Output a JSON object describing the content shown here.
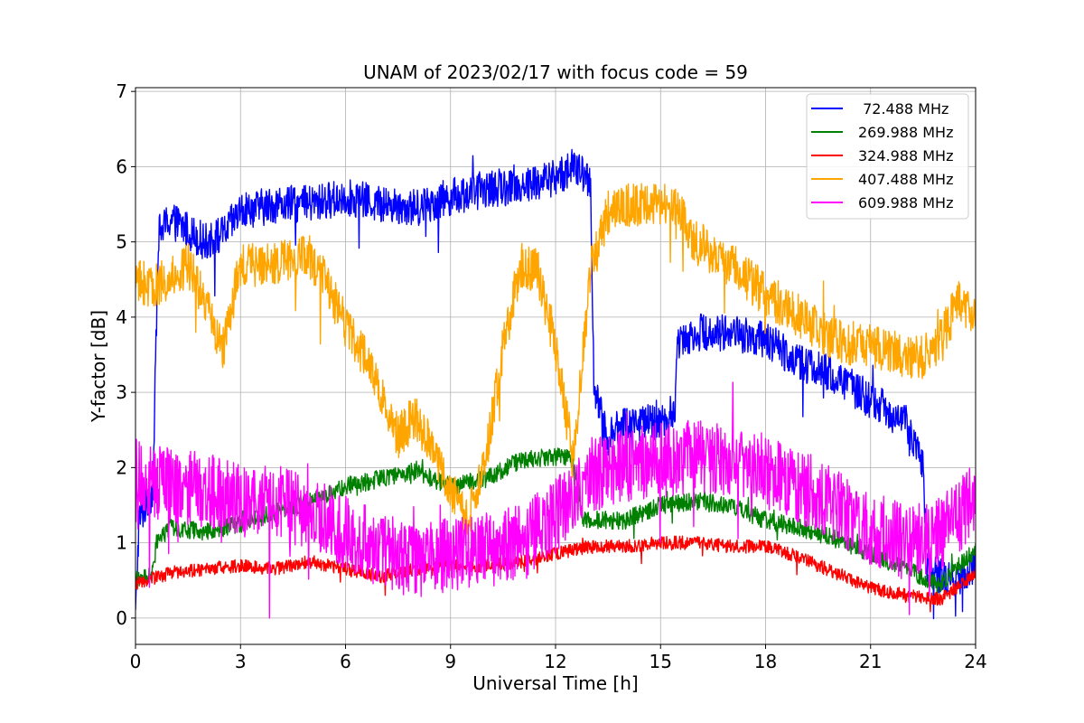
{
  "chart_data": {
    "type": "line",
    "title": "UNAM of 2023/02/17 with focus code = 59",
    "xlabel": "Universal Time [h]",
    "ylabel": "Y-factor [dB]",
    "xlim": [
      0,
      24
    ],
    "ylim": [
      -0.35,
      7.05
    ],
    "xticks": [
      0,
      3,
      6,
      9,
      12,
      15,
      18,
      21,
      24
    ],
    "yticks": [
      0,
      1,
      2,
      3,
      4,
      5,
      6,
      7
    ],
    "grid": true,
    "legend_position": "top-right",
    "series": [
      {
        "name": " 72.488 MHz",
        "color": "#0000ff",
        "noise": 0.25,
        "points": [
          [
            0.0,
            0.0
          ],
          [
            0.1,
            1.3
          ],
          [
            0.5,
            1.7
          ],
          [
            0.65,
            5.1
          ],
          [
            1.0,
            5.3
          ],
          [
            2.0,
            5.0
          ],
          [
            2.5,
            5.1
          ],
          [
            3.0,
            5.4
          ],
          [
            4.0,
            5.5
          ],
          [
            5.0,
            5.5
          ],
          [
            6.0,
            5.6
          ],
          [
            7.0,
            5.5
          ],
          [
            8.0,
            5.45
          ],
          [
            9.0,
            5.6
          ],
          [
            10.0,
            5.7
          ],
          [
            11.0,
            5.75
          ],
          [
            12.0,
            5.85
          ],
          [
            12.5,
            6.0
          ],
          [
            13.0,
            5.8
          ],
          [
            13.1,
            3.0
          ],
          [
            13.5,
            2.4
          ],
          [
            14.0,
            2.6
          ],
          [
            15.0,
            2.6
          ],
          [
            15.4,
            2.7
          ],
          [
            15.5,
            3.7
          ],
          [
            16.0,
            3.8
          ],
          [
            17.0,
            3.8
          ],
          [
            18.0,
            3.7
          ],
          [
            19.0,
            3.4
          ],
          [
            20.0,
            3.2
          ],
          [
            21.0,
            2.9
          ],
          [
            22.0,
            2.6
          ],
          [
            22.5,
            2.0
          ],
          [
            22.6,
            0.7
          ],
          [
            23.0,
            0.55
          ],
          [
            23.5,
            0.5
          ],
          [
            24.0,
            0.7
          ]
        ]
      },
      {
        "name": "269.988 MHz",
        "color": "#008000",
        "noise": 0.12,
        "points": [
          [
            0.0,
            0.5
          ],
          [
            0.5,
            0.6
          ],
          [
            0.6,
            1.0
          ],
          [
            1.0,
            1.2
          ],
          [
            2.0,
            1.15
          ],
          [
            3.0,
            1.25
          ],
          [
            4.0,
            1.4
          ],
          [
            5.0,
            1.55
          ],
          [
            6.0,
            1.75
          ],
          [
            7.0,
            1.85
          ],
          [
            8.0,
            1.95
          ],
          [
            9.0,
            1.75
          ],
          [
            10.0,
            1.85
          ],
          [
            11.0,
            2.1
          ],
          [
            12.0,
            2.15
          ],
          [
            12.5,
            2.1
          ],
          [
            12.8,
            1.3
          ],
          [
            14.0,
            1.3
          ],
          [
            15.0,
            1.5
          ],
          [
            16.0,
            1.55
          ],
          [
            17.0,
            1.5
          ],
          [
            18.0,
            1.3
          ],
          [
            19.0,
            1.2
          ],
          [
            20.0,
            1.05
          ],
          [
            21.0,
            0.85
          ],
          [
            22.0,
            0.65
          ],
          [
            23.0,
            0.45
          ],
          [
            24.0,
            0.9
          ]
        ]
      },
      {
        "name": "324.988 MHz",
        "color": "#ff0000",
        "noise": 0.09,
        "points": [
          [
            0.0,
            0.45
          ],
          [
            1.0,
            0.6
          ],
          [
            2.0,
            0.65
          ],
          [
            3.0,
            0.7
          ],
          [
            4.0,
            0.65
          ],
          [
            5.0,
            0.75
          ],
          [
            6.0,
            0.65
          ],
          [
            7.0,
            0.55
          ],
          [
            8.0,
            0.65
          ],
          [
            9.0,
            0.7
          ],
          [
            10.0,
            0.7
          ],
          [
            11.0,
            0.75
          ],
          [
            12.0,
            0.85
          ],
          [
            13.0,
            0.95
          ],
          [
            14.0,
            0.95
          ],
          [
            15.0,
            1.0
          ],
          [
            16.0,
            1.0
          ],
          [
            17.0,
            0.95
          ],
          [
            18.0,
            0.95
          ],
          [
            19.0,
            0.8
          ],
          [
            20.0,
            0.6
          ],
          [
            21.0,
            0.4
          ],
          [
            22.0,
            0.3
          ],
          [
            23.0,
            0.25
          ],
          [
            24.0,
            0.6
          ]
        ]
      },
      {
        "name": "407.488 MHz",
        "color": "#ffa500",
        "noise": 0.3,
        "points": [
          [
            0.0,
            4.5
          ],
          [
            0.5,
            4.4
          ],
          [
            1.0,
            4.5
          ],
          [
            1.5,
            4.7
          ],
          [
            2.0,
            4.2
          ],
          [
            2.5,
            3.6
          ],
          [
            3.0,
            4.7
          ],
          [
            4.0,
            4.7
          ],
          [
            5.0,
            4.8
          ],
          [
            5.5,
            4.4
          ],
          [
            6.0,
            3.9
          ],
          [
            6.5,
            3.5
          ],
          [
            7.0,
            3.0
          ],
          [
            7.5,
            2.4
          ],
          [
            8.0,
            2.7
          ],
          [
            8.5,
            2.2
          ],
          [
            9.0,
            1.7
          ],
          [
            9.5,
            1.3
          ],
          [
            10.0,
            2.1
          ],
          [
            10.5,
            3.6
          ],
          [
            11.0,
            4.7
          ],
          [
            11.5,
            4.6
          ],
          [
            12.0,
            3.6
          ],
          [
            12.5,
            2.1
          ],
          [
            13.0,
            4.6
          ],
          [
            13.5,
            5.4
          ],
          [
            14.0,
            5.5
          ],
          [
            15.0,
            5.5
          ],
          [
            15.5,
            5.4
          ],
          [
            16.0,
            5.0
          ],
          [
            17.0,
            4.7
          ],
          [
            18.0,
            4.3
          ],
          [
            19.0,
            4.0
          ],
          [
            20.0,
            3.7
          ],
          [
            21.0,
            3.6
          ],
          [
            22.0,
            3.5
          ],
          [
            22.5,
            3.45
          ],
          [
            23.0,
            3.7
          ],
          [
            23.5,
            4.2
          ],
          [
            24.0,
            4.0
          ]
        ]
      },
      {
        "name": "609.988 MHz",
        "color": "#ff00ff",
        "noise": 0.5,
        "points": [
          [
            0.0,
            1.9
          ],
          [
            1.0,
            1.75
          ],
          [
            2.0,
            1.7
          ],
          [
            3.0,
            1.55
          ],
          [
            4.0,
            1.55
          ],
          [
            5.0,
            1.4
          ],
          [
            6.0,
            1.15
          ],
          [
            7.0,
            0.9
          ],
          [
            8.0,
            0.75
          ],
          [
            9.0,
            0.85
          ],
          [
            10.0,
            0.9
          ],
          [
            11.0,
            1.0
          ],
          [
            12.0,
            1.35
          ],
          [
            12.5,
            1.6
          ],
          [
            13.0,
            1.9
          ],
          [
            14.0,
            2.05
          ],
          [
            15.0,
            2.1
          ],
          [
            16.0,
            2.15
          ],
          [
            17.0,
            2.05
          ],
          [
            18.0,
            1.95
          ],
          [
            19.0,
            1.75
          ],
          [
            20.0,
            1.5
          ],
          [
            21.0,
            1.2
          ],
          [
            22.0,
            1.0
          ],
          [
            23.0,
            1.1
          ],
          [
            24.0,
            1.6
          ]
        ]
      }
    ]
  }
}
